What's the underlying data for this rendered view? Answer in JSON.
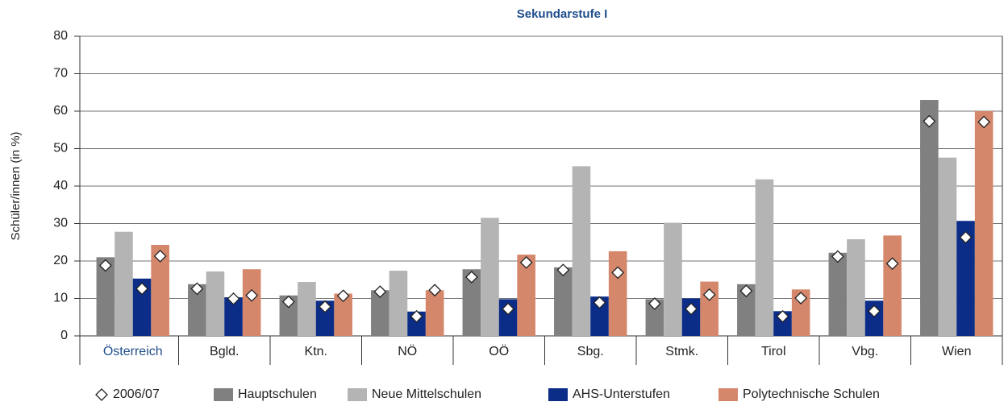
{
  "chart_data": {
    "type": "bar",
    "title": "Sekundarstufe I",
    "y_label": "Schüler/innen (in %)",
    "categories": [
      "Österreich",
      "Bgld.",
      "Ktn.",
      "NÖ",
      "OÖ",
      "Sbg.",
      "Stmk.",
      "Tirol",
      "Vbg.",
      "Wien"
    ],
    "series": [
      {
        "name": "Hauptschulen",
        "color": "#808080",
        "values": [
          21,
          13.8,
          10.8,
          12.2,
          17.8,
          18.3,
          9.8,
          13.8,
          22.2,
          63.0
        ]
      },
      {
        "name": "Neue Mittelschulen",
        "color": "#b4b4b4",
        "values": [
          27.8,
          17.2,
          14.4,
          17.4,
          31.5,
          45.3,
          30.2,
          41.8,
          25.8,
          47.6
        ]
      },
      {
        "name": "AHS-Unterstufen",
        "color": "#0c2d87",
        "values": [
          15.3,
          10.3,
          9.4,
          6.5,
          9.8,
          10.5,
          10.0,
          6.6,
          9.4,
          30.7
        ]
      },
      {
        "name": "Polytechnische Schulen",
        "color": "#d4876b",
        "values": [
          24.3,
          17.8,
          11.3,
          12.2,
          21.7,
          22.6,
          14.5,
          12.4,
          26.8,
          60.0
        ]
      }
    ],
    "reference": {
      "name": "2006/07",
      "values": [
        [
          18.8,
          null,
          12.6,
          21.3
        ],
        [
          12.6,
          null,
          9.9,
          10.8
        ],
        [
          9.1,
          null,
          7.8,
          10.7
        ],
        [
          11.8,
          null,
          5.2,
          12.2
        ],
        [
          15.7,
          null,
          7.2,
          19.6
        ],
        [
          17.6,
          null,
          8.9,
          16.9
        ],
        [
          8.6,
          null,
          7.2,
          11.0
        ],
        [
          12.0,
          null,
          5.2,
          10.1
        ],
        [
          21.2,
          null,
          6.6,
          19.3
        ],
        [
          57.3,
          null,
          26.3,
          57.1
        ]
      ]
    },
    "ylim": [
      0,
      80
    ],
    "yticks": [
      0,
      10,
      20,
      30,
      40,
      50,
      60,
      70,
      80
    ],
    "grid": true
  }
}
